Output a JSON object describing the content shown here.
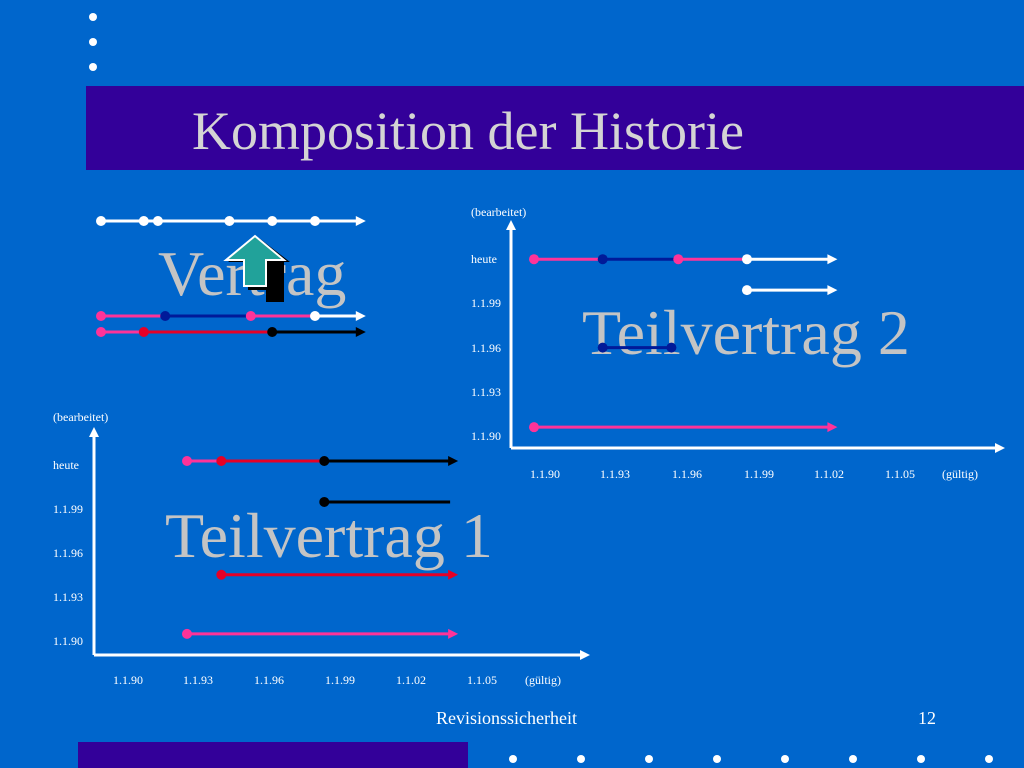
{
  "slide": {
    "title": "Komposition der Historie",
    "footer_left": "Revisionssicherheit",
    "footer_page": "12"
  },
  "colors": {
    "background": "#0066cc",
    "title_bar": "#330099",
    "axis": "#ffffff",
    "pink": "#ff3399",
    "red": "#e60026",
    "navy": "#001a99",
    "black": "#000000",
    "white": "#ffffff",
    "arrow_fill": "#21a29a"
  },
  "vertrag": {
    "label": "Vertrag",
    "rows": [
      {
        "segments": [
          {
            "from": 0,
            "to": 6,
            "color": "white"
          }
        ],
        "dots": [
          0,
          1,
          1.33,
          3,
          4,
          5
        ],
        "arrow": true
      },
      {
        "segments": [
          {
            "from": 0,
            "to": 1.5,
            "color": "pink"
          },
          {
            "from": 1.5,
            "to": 3.5,
            "color": "navy"
          },
          {
            "from": 3.5,
            "to": 5,
            "color": "pink"
          },
          {
            "from": 5,
            "to": 6,
            "color": "white"
          }
        ],
        "dots": [
          0,
          1.5,
          3.5,
          5
        ],
        "arrow": true
      },
      {
        "segments": [
          {
            "from": 0,
            "to": 1,
            "color": "pink"
          },
          {
            "from": 1,
            "to": 4,
            "color": "red"
          },
          {
            "from": 4,
            "to": 6,
            "color": "black"
          }
        ],
        "dots": [
          0,
          1,
          4
        ],
        "arrow": true
      }
    ]
  },
  "charts": [
    {
      "id": "teilvertrag-2",
      "overlay_label": "Teilvertrag 2",
      "x_ticks": [
        "1.1.90",
        "1.1.93",
        "1.1.96",
        "1.1.99",
        "1.1.02",
        "1.1.05"
      ],
      "x_label": "(gültig)",
      "y_ticks": [
        "1.1.90",
        "1.1.93",
        "1.1.96",
        "1.1.99",
        "heute"
      ],
      "y_label": "(bearbeitet)",
      "segments": [
        {
          "y": 4,
          "parts": [
            {
              "from": 1,
              "to": 2,
              "color": "pink"
            },
            {
              "from": 2,
              "to": 3.1,
              "color": "navy"
            },
            {
              "from": 3.1,
              "to": 4.1,
              "color": "pink"
            },
            {
              "from": 4.1,
              "to": 5.3,
              "color": "white"
            }
          ],
          "dots": [
            1,
            2,
            3.1,
            4.1
          ],
          "arrow": true
        },
        {
          "y": 3.3,
          "parts": [
            {
              "from": 4.1,
              "to": 5.3,
              "color": "white"
            }
          ],
          "dots": [
            4.1
          ],
          "arrow": true
        },
        {
          "y": 2,
          "parts": [
            {
              "from": 2,
              "to": 3,
              "color": "navy"
            }
          ],
          "dots": [
            2,
            3
          ],
          "arrow": false
        },
        {
          "y": 0.2,
          "parts": [
            {
              "from": 1,
              "to": 5.3,
              "color": "pink"
            }
          ],
          "dots": [
            1
          ],
          "arrow": true
        }
      ]
    },
    {
      "id": "teilvertrag-1",
      "overlay_label": "Teilvertrag 1",
      "x_ticks": [
        "1.1.90",
        "1.1.93",
        "1.1.96",
        "1.1.99",
        "1.1.02",
        "1.1.05"
      ],
      "x_label": "(gültig)",
      "y_ticks": [
        "1.1.90",
        "1.1.93",
        "1.1.96",
        "1.1.99",
        "heute"
      ],
      "y_label": "(bearbeitet)",
      "segments": [
        {
          "y": 4,
          "parts": [
            {
              "from": 1,
              "to": 1.6,
              "color": "pink"
            },
            {
              "from": 1.6,
              "to": 3.4,
              "color": "red"
            },
            {
              "from": 3.4,
              "to": 5.6,
              "color": "black"
            }
          ],
          "dots": [
            1,
            1.6,
            3.4
          ],
          "arrow": true
        },
        {
          "y": 3.1,
          "parts": [
            {
              "from": 3.4,
              "to": 5.6,
              "color": "black"
            }
          ],
          "dots": [
            3.4
          ],
          "arrow": false
        },
        {
          "y": 1.5,
          "parts": [
            {
              "from": 1.6,
              "to": 5.6,
              "color": "red"
            }
          ],
          "dots": [
            1.6
          ],
          "arrow": true
        },
        {
          "y": 0.2,
          "parts": [
            {
              "from": 1,
              "to": 5.6,
              "color": "pink"
            }
          ],
          "dots": [
            1
          ],
          "arrow": true
        }
      ]
    }
  ]
}
